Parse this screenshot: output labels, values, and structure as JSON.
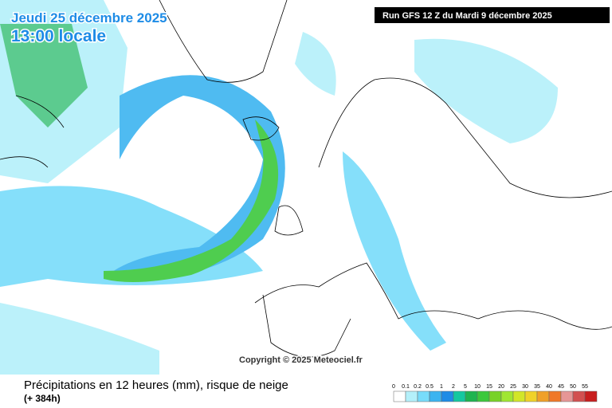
{
  "header": {
    "date": "Jeudi 25 décembre 2025",
    "time": "13:00 locale",
    "run": "Run GFS 12 Z du Mardi 9 décembre 2025"
  },
  "copyright": "Copyright © 2025 Meteociel.fr",
  "legend": {
    "title": "Précipitations en 12 heures (mm), risque de neige",
    "subtitle": "(+ 384h)",
    "labels": [
      0,
      0.1,
      0.2,
      0.5,
      1,
      2,
      5,
      10,
      15,
      20,
      25,
      30,
      35,
      40,
      45,
      50,
      55
    ],
    "colors": [
      "#ffffff",
      "#b4f0fa",
      "#78dcfa",
      "#3cb4f0",
      "#1e8ce6",
      "#14c8a0",
      "#1eb450",
      "#3cc83c",
      "#78d228",
      "#a0e632",
      "#d2e628",
      "#f0d228",
      "#f0a028",
      "#f07828",
      "#e69696",
      "#d25050",
      "#c81e1e"
    ]
  }
}
